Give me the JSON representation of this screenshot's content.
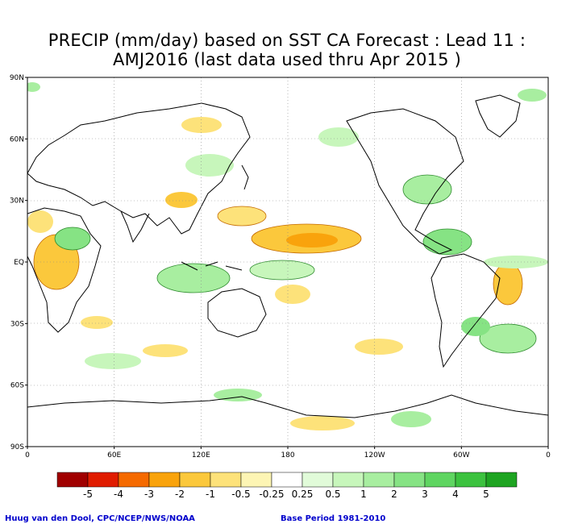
{
  "title": {
    "line1": "PRECIP (mm/day) based on SST CA Forecast : Lead 11 :",
    "line2": "AMJ2016 (last data used thru Apr 2015 )"
  },
  "axes": {
    "lat_labels": [
      "90N",
      "60N",
      "30N",
      "EQ",
      "30S",
      "60S",
      "90S"
    ],
    "lon_labels": [
      "0",
      "60E",
      "120E",
      "180",
      "120W",
      "60W",
      "0"
    ]
  },
  "colorbar": {
    "labels": [
      "-5",
      "-4",
      "-3",
      "-2",
      "-1",
      "-0.5",
      "-0.25",
      "0.25",
      "0.5",
      "1",
      "2",
      "3",
      "4",
      "5"
    ],
    "colors": [
      "#a00000",
      "#e01c00",
      "#f56a00",
      "#f9a30c",
      "#fbc83c",
      "#fde27a",
      "#fdf5b4",
      "#ffffff",
      "#e1fbd9",
      "#c7f6bb",
      "#a8eea0",
      "#86e384",
      "#5fd561",
      "#3cc23f",
      "#1ea422"
    ]
  },
  "footer": {
    "left": "Huug van den Dool, CPC/NCEP/NWS/NOAA",
    "right": "Base Period 1981-2010"
  }
}
